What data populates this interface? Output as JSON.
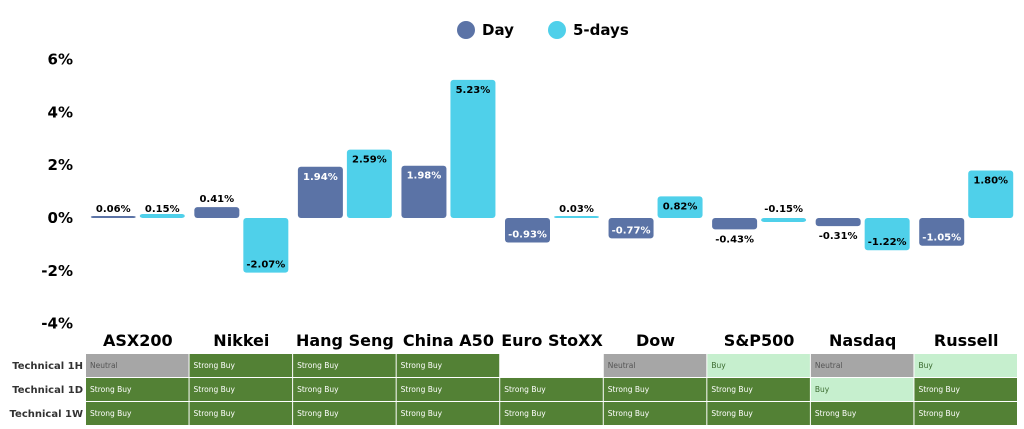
{
  "chart_data": {
    "type": "bar",
    "categories": [
      "ASX200",
      "Nikkei",
      "Hang Seng",
      "China A50",
      "Euro StoXX",
      "Dow",
      "S&P500",
      "Nasdaq",
      "Russell"
    ],
    "series": [
      {
        "name": "Day",
        "color": "#5b73a6",
        "values": [
          0.06,
          0.41,
          1.94,
          1.98,
          -0.93,
          -0.77,
          -0.43,
          -0.31,
          -1.05
        ]
      },
      {
        "name": "5-days",
        "color": "#4fd0ea",
        "values": [
          0.15,
          -2.07,
          2.59,
          5.23,
          0.03,
          0.82,
          -0.15,
          -1.22,
          1.8
        ]
      }
    ],
    "data_labels": [
      [
        "0.06%",
        "0.41%",
        "1.94%",
        "1.98%",
        "-0.93%",
        "-0.77%",
        "-0.43%",
        "-0.31%",
        "-1.05%"
      ],
      [
        "0.15%",
        "-2.07%",
        "2.59%",
        "5.23%",
        "0.03%",
        "0.82%",
        "-0.15%",
        "-1.22%",
        "1.80%"
      ]
    ],
    "y_ticks": [
      "6%",
      "4%",
      "2%",
      "0%",
      "-2%",
      "-4%"
    ],
    "y_tick_values": [
      6,
      4,
      2,
      0,
      -2,
      -4
    ],
    "ylim": [
      -4,
      6
    ],
    "grid": false,
    "legend_position": "top-center"
  },
  "technicals": {
    "colors": {
      "Strong Buy": "#538135",
      "Buy": "#c6efce",
      "Neutral": "#a6a6a6",
      "": "#ffffff"
    },
    "text_colors": {
      "Strong Buy": "#ffffff",
      "Buy": "#3a6a2e",
      "Neutral": "#555555",
      "": "#000000"
    },
    "rows": [
      {
        "label": "Technical 1H",
        "values": [
          "Neutral",
          "Strong Buy",
          "Strong Buy",
          "Strong Buy",
          "",
          "Neutral",
          "Buy",
          "Neutral",
          "Buy"
        ]
      },
      {
        "label": "Technical 1D",
        "values": [
          "Strong Buy",
          "Strong Buy",
          "Strong Buy",
          "Strong Buy",
          "Strong Buy",
          "Strong Buy",
          "Strong Buy",
          "Buy",
          "Strong Buy"
        ]
      },
      {
        "label": "Technical 1W",
        "values": [
          "Strong Buy",
          "Strong Buy",
          "Strong Buy",
          "Strong Buy",
          "Strong Buy",
          "Strong Buy",
          "Strong Buy",
          "Strong Buy",
          "Strong Buy"
        ]
      }
    ]
  }
}
